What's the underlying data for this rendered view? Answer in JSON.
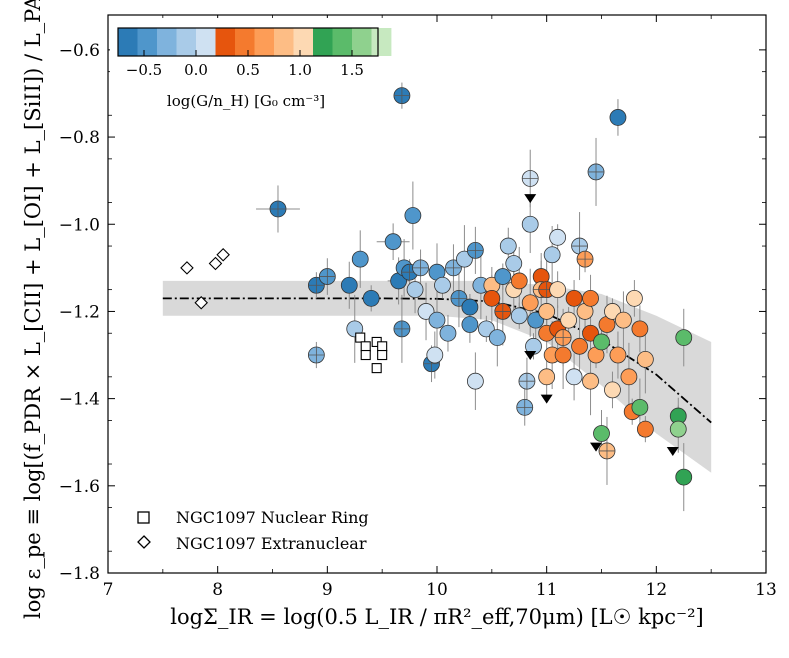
{
  "chart_data": {
    "type": "scatter",
    "xlabel": "logΣ_IR = log(0.5 L_IR / πR²_eff,70μm)   [L☉ kpc⁻²]",
    "ylabel": "log ε_pe ≡ log[(f_PDR × L_[CII] + L_[OI] + L_[SiII]) / L_PAH]",
    "xlim": [
      7,
      13
    ],
    "ylim": [
      -1.8,
      -0.52
    ],
    "xticks": [
      7,
      8,
      9,
      10,
      11,
      12,
      13
    ],
    "yticks": [
      -1.8,
      -1.6,
      -1.4,
      -1.2,
      -1.0,
      -0.8,
      -0.6
    ],
    "colorbar": {
      "label": "log(G/n_H)   [G₀ cm⁻³]",
      "range": [
        -0.75,
        1.75
      ],
      "ticks": [
        -0.5,
        0.0,
        0.5,
        1.0,
        1.5
      ],
      "tick_labels": [
        "−0.5",
        "0.0",
        "0.5",
        "1.0",
        "1.5"
      ],
      "band_width": 0.1875,
      "colors": [
        "#2c7bb6",
        "#4f96cb",
        "#7fb3dd",
        "#a9cbe8",
        "#cfe1f2",
        "#e6550d",
        "#f47a2e",
        "#fd9d57",
        "#fdbd85",
        "#fdd9b3",
        "#31a354",
        "#5bbb6a",
        "#8fd18e",
        "#c7e9c0"
      ]
    },
    "fit_line": {
      "style": "dash-dot",
      "x": [
        7.5,
        8.0,
        8.5,
        9.0,
        9.5,
        10.0,
        10.5,
        11.0,
        11.5,
        12.0,
        12.5
      ],
      "y": [
        -1.17,
        -1.17,
        -1.17,
        -1.17,
        -1.17,
        -1.171,
        -1.177,
        -1.205,
        -1.265,
        -1.345,
        -1.455
      ]
    },
    "confidence_band": {
      "x": [
        7.5,
        8.0,
        8.5,
        9.0,
        9.5,
        10.0,
        10.5,
        11.0,
        11.5,
        12.0,
        12.5
      ],
      "upper": [
        -1.13,
        -1.13,
        -1.13,
        -1.13,
        -1.13,
        -1.13,
        -1.13,
        -1.14,
        -1.16,
        -1.21,
        -1.27
      ],
      "lower": [
        -1.21,
        -1.21,
        -1.21,
        -1.21,
        -1.21,
        -1.21,
        -1.22,
        -1.27,
        -1.37,
        -1.48,
        -1.57
      ]
    },
    "legend": [
      {
        "marker": "square",
        "label": "NGC1097 Nuclear Ring"
      },
      {
        "marker": "diamond",
        "label": "NGC1097 Extranuclear"
      }
    ],
    "nuclear_ring": [
      [
        9.3,
        -1.26
      ],
      [
        9.35,
        -1.28
      ],
      [
        9.35,
        -1.3
      ],
      [
        9.45,
        -1.27
      ],
      [
        9.5,
        -1.28
      ],
      [
        9.5,
        -1.3
      ],
      [
        9.45,
        -1.33
      ]
    ],
    "extranuclear": [
      [
        7.72,
        -1.1
      ],
      [
        7.85,
        -1.18
      ],
      [
        7.98,
        -1.09
      ],
      [
        8.05,
        -1.07
      ]
    ],
    "upper_limits": [
      [
        10.85,
        -0.94
      ],
      [
        11.0,
        -1.4
      ],
      [
        10.85,
        -1.3
      ],
      [
        11.45,
        -1.51
      ],
      [
        12.15,
        -1.52
      ]
    ],
    "galaxies": [
      {
        "x": 9.68,
        "y": -0.705,
        "c": 0,
        "cross": true,
        "xerr": 0.06
      },
      {
        "x": 11.65,
        "y": -0.755,
        "c": 0
      },
      {
        "x": 8.55,
        "y": -0.965,
        "c": 0,
        "cross": true,
        "xerr": 0.2
      },
      {
        "x": 10.85,
        "y": -0.895,
        "c": 4,
        "cross": true
      },
      {
        "x": 11.45,
        "y": -0.88,
        "c": 2,
        "cross": true
      },
      {
        "x": 8.9,
        "y": -1.14,
        "c": 0,
        "cross": true
      },
      {
        "x": 9.0,
        "y": -1.12,
        "c": 1,
        "cross": true
      },
      {
        "x": 9.2,
        "y": -1.14,
        "c": 0
      },
      {
        "x": 9.3,
        "y": -1.08,
        "c": 1
      },
      {
        "x": 9.25,
        "y": -1.24,
        "c": 3
      },
      {
        "x": 9.4,
        "y": -1.17,
        "c": 0
      },
      {
        "x": 9.6,
        "y": -1.04,
        "c": 1,
        "xerr": 0.15
      },
      {
        "x": 9.65,
        "y": -1.13,
        "c": 0,
        "xerr": 0.1
      },
      {
        "x": 9.7,
        "y": -1.1,
        "c": 1
      },
      {
        "x": 9.78,
        "y": -0.98,
        "c": 1
      },
      {
        "x": 9.75,
        "y": -1.11,
        "c": 0,
        "cross": true
      },
      {
        "x": 9.85,
        "y": -1.1,
        "c": 2,
        "cross": true
      },
      {
        "x": 9.8,
        "y": -1.15,
        "c": 3
      },
      {
        "x": 9.9,
        "y": -1.2,
        "c": 4
      },
      {
        "x": 9.68,
        "y": -1.24,
        "c": 1,
        "cross": true
      },
      {
        "x": 8.9,
        "y": -1.3,
        "c": 2,
        "cross": true
      },
      {
        "x": 9.95,
        "y": -1.32,
        "c": 0,
        "cross": true
      },
      {
        "x": 9.98,
        "y": -1.3,
        "c": 4
      },
      {
        "x": 10.0,
        "y": -1.11,
        "c": 1
      },
      {
        "x": 10.0,
        "y": -1.22,
        "c": 2
      },
      {
        "x": 10.05,
        "y": -1.14,
        "c": 3
      },
      {
        "x": 10.1,
        "y": -1.25,
        "c": 2
      },
      {
        "x": 10.15,
        "y": -1.1,
        "c": 2,
        "cross": true
      },
      {
        "x": 10.2,
        "y": -1.17,
        "c": 1,
        "cross": true
      },
      {
        "x": 10.25,
        "y": -1.08,
        "c": 3
      },
      {
        "x": 10.3,
        "y": -1.19,
        "c": 0
      },
      {
        "x": 10.3,
        "y": -1.23,
        "c": 1
      },
      {
        "x": 10.35,
        "y": -1.06,
        "c": 1,
        "cross": true
      },
      {
        "x": 10.35,
        "y": -1.36,
        "c": 4
      },
      {
        "x": 10.4,
        "y": -1.14,
        "c": 2
      },
      {
        "x": 10.45,
        "y": -1.24,
        "c": 3
      },
      {
        "x": 10.5,
        "y": -1.14,
        "c": 8
      },
      {
        "x": 10.5,
        "y": -1.17,
        "c": 5
      },
      {
        "x": 10.55,
        "y": -1.26,
        "c": 2
      },
      {
        "x": 10.6,
        "y": -1.2,
        "c": 5,
        "cross": true
      },
      {
        "x": 10.6,
        "y": -1.12,
        "c": 1
      },
      {
        "x": 10.65,
        "y": -1.05,
        "c": 3
      },
      {
        "x": 10.7,
        "y": -1.09,
        "c": 3
      },
      {
        "x": 10.7,
        "y": -1.15,
        "c": 9
      },
      {
        "x": 10.75,
        "y": -1.13,
        "c": 6
      },
      {
        "x": 10.75,
        "y": -1.21,
        "c": 3
      },
      {
        "x": 10.8,
        "y": -1.42,
        "c": 2,
        "cross": true
      },
      {
        "x": 10.82,
        "y": -1.36,
        "c": 3,
        "cross": true
      },
      {
        "x": 10.85,
        "y": -1.0,
        "c": 3
      },
      {
        "x": 10.85,
        "y": -1.18,
        "c": 7
      },
      {
        "x": 10.88,
        "y": -1.28,
        "c": 3
      },
      {
        "x": 10.9,
        "y": -1.22,
        "c": 1
      },
      {
        "x": 10.95,
        "y": -1.12,
        "c": 5
      },
      {
        "x": 10.95,
        "y": -1.15,
        "c": 8,
        "cross": true
      },
      {
        "x": 11.0,
        "y": -1.15,
        "c": 5,
        "cross": true
      },
      {
        "x": 11.0,
        "y": -1.2,
        "c": 8
      },
      {
        "x": 11.0,
        "y": -1.25,
        "c": 6
      },
      {
        "x": 11.0,
        "y": -1.35,
        "c": 8
      },
      {
        "x": 11.05,
        "y": -1.07,
        "c": 3
      },
      {
        "x": 11.05,
        "y": -1.3,
        "c": 7
      },
      {
        "x": 11.1,
        "y": -1.03,
        "c": 4
      },
      {
        "x": 11.1,
        "y": -1.15,
        "c": 9
      },
      {
        "x": 11.1,
        "y": -1.24,
        "c": 5
      },
      {
        "x": 11.15,
        "y": -1.26,
        "c": 7,
        "cross": true
      },
      {
        "x": 11.15,
        "y": -1.3,
        "c": 6
      },
      {
        "x": 11.2,
        "y": -1.22,
        "c": 9
      },
      {
        "x": 11.25,
        "y": -1.17,
        "c": 5
      },
      {
        "x": 11.25,
        "y": -1.35,
        "c": 4
      },
      {
        "x": 11.3,
        "y": -1.28,
        "c": 6
      },
      {
        "x": 11.3,
        "y": -1.05,
        "c": 3,
        "cross": true
      },
      {
        "x": 11.35,
        "y": -1.08,
        "c": 7,
        "cross": true
      },
      {
        "x": 11.35,
        "y": -1.2,
        "c": 8
      },
      {
        "x": 11.4,
        "y": -1.17,
        "c": 6
      },
      {
        "x": 11.4,
        "y": -1.25,
        "c": 5
      },
      {
        "x": 11.4,
        "y": -1.36,
        "c": 8
      },
      {
        "x": 11.45,
        "y": -1.3,
        "c": 7
      },
      {
        "x": 11.5,
        "y": -1.27,
        "c": 11
      },
      {
        "x": 11.5,
        "y": -1.48,
        "c": 11
      },
      {
        "x": 11.55,
        "y": -1.23,
        "c": 6
      },
      {
        "x": 11.55,
        "y": -1.52,
        "c": 8,
        "cross": true
      },
      {
        "x": 11.6,
        "y": -1.2,
        "c": 9
      },
      {
        "x": 11.6,
        "y": -1.38,
        "c": 9
      },
      {
        "x": 11.65,
        "y": -1.3,
        "c": 7
      },
      {
        "x": 11.7,
        "y": -1.22,
        "c": 8
      },
      {
        "x": 11.75,
        "y": -1.35,
        "c": 7
      },
      {
        "x": 11.78,
        "y": -1.43,
        "c": 6
      },
      {
        "x": 11.8,
        "y": -1.17,
        "c": 9
      },
      {
        "x": 11.85,
        "y": -1.24,
        "c": 6
      },
      {
        "x": 11.85,
        "y": -1.42,
        "c": 11
      },
      {
        "x": 11.9,
        "y": -1.31,
        "c": 8
      },
      {
        "x": 11.9,
        "y": -1.47,
        "c": 6
      },
      {
        "x": 12.2,
        "y": -1.44,
        "c": 10
      },
      {
        "x": 12.2,
        "y": -1.47,
        "c": 12
      },
      {
        "x": 12.25,
        "y": -1.26,
        "c": 11
      },
      {
        "x": 12.25,
        "y": -1.58,
        "c": 10
      }
    ]
  }
}
